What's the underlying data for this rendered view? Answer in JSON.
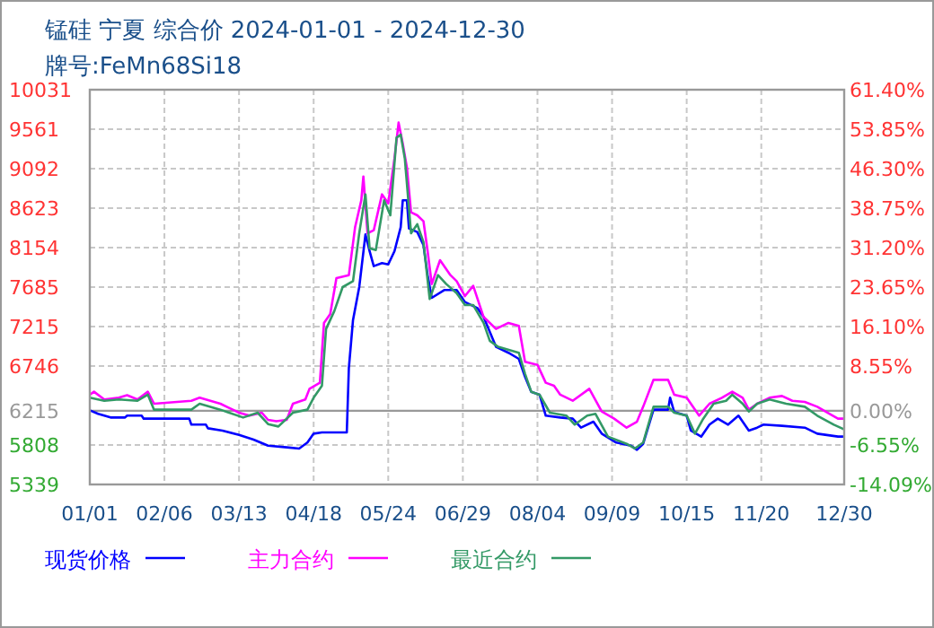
{
  "chart_data": {
    "type": "line",
    "title": "锰硅  宁夏  综合价  2024-01-01 - 2024-12-30",
    "subtitle": "牌号:FeMn68Si18",
    "xlim": [
      "2024-01-01",
      "2024-12-30"
    ],
    "xticks": [
      {
        "value": "2024-01-01",
        "label": "01/01"
      },
      {
        "value": "2024-02-06",
        "label": "02/06"
      },
      {
        "value": "2024-03-13",
        "label": "03/13"
      },
      {
        "value": "2024-04-18",
        "label": "04/18"
      },
      {
        "value": "2024-05-24",
        "label": "05/24"
      },
      {
        "value": "2024-06-29",
        "label": "06/29"
      },
      {
        "value": "2024-08-04",
        "label": "08/04"
      },
      {
        "value": "2024-09-09",
        "label": "09/09"
      },
      {
        "value": "2024-10-15",
        "label": "10/15"
      },
      {
        "value": "2024-11-20",
        "label": "11/20"
      },
      {
        "value": "2024-12-30",
        "label": "12/30"
      }
    ],
    "ylim": [
      5339,
      10031
    ],
    "yticks": [
      5339,
      5808,
      6215,
      6746,
      7215,
      7685,
      8154,
      8623,
      9092,
      9561,
      10031
    ],
    "y2lim": [
      -14.09,
      61.4
    ],
    "y2ticks": [
      {
        "value": -14.09,
        "label": "-14.09%"
      },
      {
        "value": -6.55,
        "label": "-6.55%"
      },
      {
        "value": 0,
        "label": "0.00%"
      },
      {
        "value": 8.55,
        "label": "8.55%"
      },
      {
        "value": 16.1,
        "label": "16.10%"
      },
      {
        "value": 23.65,
        "label": "23.65%"
      },
      {
        "value": 31.2,
        "label": "31.20%"
      },
      {
        "value": 38.75,
        "label": "38.75%"
      },
      {
        "value": 46.3,
        "label": "46.30%"
      },
      {
        "value": 53.85,
        "label": "53.85%"
      },
      {
        "value": 61.4,
        "label": "61.40%"
      }
    ],
    "ref_lines": [
      {
        "axis": "y",
        "value": 6215,
        "label": null,
        "color": "#999999"
      }
    ],
    "grid": true,
    "legend": "bottom",
    "line_style": "solid",
    "series": [
      {
        "name": "现货价格",
        "color": "#0000ff",
        "x": [
          "2024-01-01",
          "2024-01-05",
          "2024-01-11",
          "2024-01-18",
          "2024-01-19",
          "2024-01-26",
          "2024-01-27",
          "2024-02-18",
          "2024-02-19",
          "2024-02-26",
          "2024-02-27",
          "2024-03-05",
          "2024-03-13",
          "2024-03-20",
          "2024-03-27",
          "2024-04-05",
          "2024-04-11",
          "2024-04-15",
          "2024-04-18",
          "2024-04-22",
          "2024-05-04",
          "2024-05-05",
          "2024-05-07",
          "2024-05-10",
          "2024-05-13",
          "2024-05-15",
          "2024-05-17",
          "2024-05-21",
          "2024-05-24",
          "2024-05-27",
          "2024-05-30",
          "2024-05-31",
          "2024-06-02",
          "2024-06-03",
          "2024-06-07",
          "2024-06-10",
          "2024-06-12",
          "2024-06-14",
          "2024-06-20",
          "2024-06-26",
          "2024-06-30",
          "2024-07-06",
          "2024-07-09",
          "2024-07-15",
          "2024-07-21",
          "2024-07-26",
          "2024-07-29",
          "2024-08-01",
          "2024-08-05",
          "2024-08-08",
          "2024-08-15",
          "2024-08-21",
          "2024-08-25",
          "2024-08-31",
          "2024-09-04",
          "2024-09-11",
          "2024-09-18",
          "2024-09-21",
          "2024-09-24",
          "2024-09-29",
          "2024-10-06",
          "2024-10-07",
          "2024-10-09",
          "2024-10-15",
          "2024-10-17",
          "2024-10-22",
          "2024-10-26",
          "2024-10-30",
          "2024-11-04",
          "2024-11-09",
          "2024-11-14",
          "2024-11-18",
          "2024-11-21",
          "2024-11-30",
          "2024-12-11",
          "2024-12-17",
          "2024-12-27",
          "2024-12-30"
        ],
        "values": [
          6220,
          6178,
          6135,
          6135,
          6157,
          6157,
          6121,
          6121,
          6050,
          6050,
          6007,
          5979,
          5929,
          5872,
          5801,
          5780,
          5766,
          5837,
          5943,
          5958,
          5958,
          6725,
          7294,
          7685,
          8311,
          8112,
          7934,
          7970,
          7955,
          8112,
          8396,
          8716,
          8716,
          8382,
          8339,
          8183,
          7827,
          7557,
          7650,
          7650,
          7507,
          7436,
          7330,
          6975,
          6904,
          6832,
          6619,
          6441,
          6406,
          6157,
          6135,
          6121,
          6014,
          6085,
          5943,
          5837,
          5801,
          5751,
          5822,
          6228,
          6228,
          6370,
          6200,
          6157,
          5979,
          5908,
          6050,
          6121,
          6050,
          6157,
          5979,
          6014,
          6050,
          6036,
          6014,
          5943,
          5908,
          5908
        ]
      },
      {
        "name": "主力合约",
        "color": "#ff00ff",
        "x": [
          "2024-01-01",
          "2024-01-03",
          "2024-01-08",
          "2024-01-15",
          "2024-01-19",
          "2024-01-24",
          "2024-01-29",
          "2024-02-01",
          "2024-02-19",
          "2024-02-23",
          "2024-03-04",
          "2024-03-13",
          "2024-03-18",
          "2024-03-24",
          "2024-03-27",
          "2024-03-31",
          "2024-04-05",
          "2024-04-08",
          "2024-04-14",
          "2024-04-16",
          "2024-04-21",
          "2024-04-23",
          "2024-04-26",
          "2024-04-29",
          "2024-05-05",
          "2024-05-08",
          "2024-05-11",
          "2024-05-12",
          "2024-05-14",
          "2024-05-17",
          "2024-05-21",
          "2024-05-24",
          "2024-05-27",
          "2024-05-29",
          "2024-05-31",
          "2024-06-02",
          "2024-06-04",
          "2024-06-07",
          "2024-06-10",
          "2024-06-12",
          "2024-06-14",
          "2024-06-18",
          "2024-06-23",
          "2024-06-26",
          "2024-06-30",
          "2024-07-04",
          "2024-07-09",
          "2024-07-15",
          "2024-07-21",
          "2024-07-26",
          "2024-07-29",
          "2024-08-04",
          "2024-08-08",
          "2024-08-12",
          "2024-08-15",
          "2024-08-21",
          "2024-08-29",
          "2024-09-04",
          "2024-09-10",
          "2024-09-16",
          "2024-09-21",
          "2024-09-24",
          "2024-09-29",
          "2024-10-06",
          "2024-10-09",
          "2024-10-15",
          "2024-10-21",
          "2024-10-26",
          "2024-11-01",
          "2024-11-06",
          "2024-11-11",
          "2024-11-14",
          "2024-11-18",
          "2024-11-24",
          "2024-11-30",
          "2024-12-05",
          "2024-12-11",
          "2024-12-17",
          "2024-12-23",
          "2024-12-27",
          "2024-12-30"
        ],
        "values": [
          6406,
          6441,
          6349,
          6370,
          6400,
          6349,
          6441,
          6299,
          6334,
          6370,
          6299,
          6192,
          6157,
          6192,
          6107,
          6090,
          6107,
          6299,
          6349,
          6476,
          6548,
          7259,
          7365,
          7792,
          7827,
          8396,
          8716,
          9000,
          8325,
          8360,
          8787,
          8680,
          9213,
          9640,
          9391,
          9107,
          8574,
          8538,
          8467,
          8112,
          7721,
          8005,
          7827,
          7756,
          7578,
          7700,
          7330,
          7188,
          7259,
          7223,
          6797,
          6761,
          6548,
          6512,
          6406,
          6334,
          6476,
          6206,
          6121,
          6014,
          6085,
          6263,
          6583,
          6583,
          6406,
          6370,
          6157,
          6299,
          6370,
          6441,
          6370,
          6228,
          6299,
          6370,
          6391,
          6334,
          6320,
          6263,
          6178,
          6121,
          6121
        ]
      },
      {
        "name": "最近合约",
        "color": "#339966",
        "x": [
          "2024-01-01",
          "2024-01-08",
          "2024-01-15",
          "2024-01-24",
          "2024-01-29",
          "2024-02-01",
          "2024-02-19",
          "2024-02-23",
          "2024-03-04",
          "2024-03-15",
          "2024-03-22",
          "2024-03-27",
          "2024-04-01",
          "2024-04-08",
          "2024-04-15",
          "2024-04-18",
          "2024-04-22",
          "2024-04-24",
          "2024-04-28",
          "2024-05-02",
          "2024-05-07",
          "2024-05-10",
          "2024-05-13",
          "2024-05-15",
          "2024-05-18",
          "2024-05-22",
          "2024-05-25",
          "2024-05-28",
          "2024-05-30",
          "2024-06-01",
          "2024-06-04",
          "2024-06-07",
          "2024-06-10",
          "2024-06-13",
          "2024-06-17",
          "2024-06-21",
          "2024-06-26",
          "2024-06-30",
          "2024-07-04",
          "2024-07-09",
          "2024-07-12",
          "2024-07-16",
          "2024-07-26",
          "2024-07-29",
          "2024-08-01",
          "2024-08-05",
          "2024-08-10",
          "2024-08-18",
          "2024-08-22",
          "2024-08-28",
          "2024-09-01",
          "2024-09-07",
          "2024-09-16",
          "2024-09-20",
          "2024-09-24",
          "2024-09-29",
          "2024-10-06",
          "2024-10-09",
          "2024-10-15",
          "2024-10-19",
          "2024-10-23",
          "2024-10-28",
          "2024-11-03",
          "2024-11-06",
          "2024-11-11",
          "2024-11-14",
          "2024-11-18",
          "2024-11-24",
          "2024-12-02",
          "2024-12-11",
          "2024-12-17",
          "2024-12-25",
          "2024-12-30"
        ],
        "values": [
          6370,
          6334,
          6349,
          6334,
          6406,
          6228,
          6228,
          6299,
          6228,
          6135,
          6192,
          6057,
          6028,
          6192,
          6228,
          6370,
          6512,
          7188,
          7401,
          7685,
          7756,
          8325,
          8787,
          8147,
          8126,
          8716,
          8538,
          9462,
          9497,
          9213,
          8325,
          8432,
          8218,
          7543,
          7827,
          7721,
          7614,
          7472,
          7472,
          7259,
          7046,
          6975,
          6904,
          6655,
          6441,
          6406,
          6192,
          6157,
          6050,
          6157,
          6178,
          5908,
          5822,
          5766,
          5837,
          6263,
          6263,
          6192,
          6157,
          5943,
          6121,
          6299,
          6334,
          6406,
          6299,
          6206,
          6299,
          6349,
          6299,
          6263,
          6157,
          6050,
          5993
        ]
      }
    ]
  }
}
